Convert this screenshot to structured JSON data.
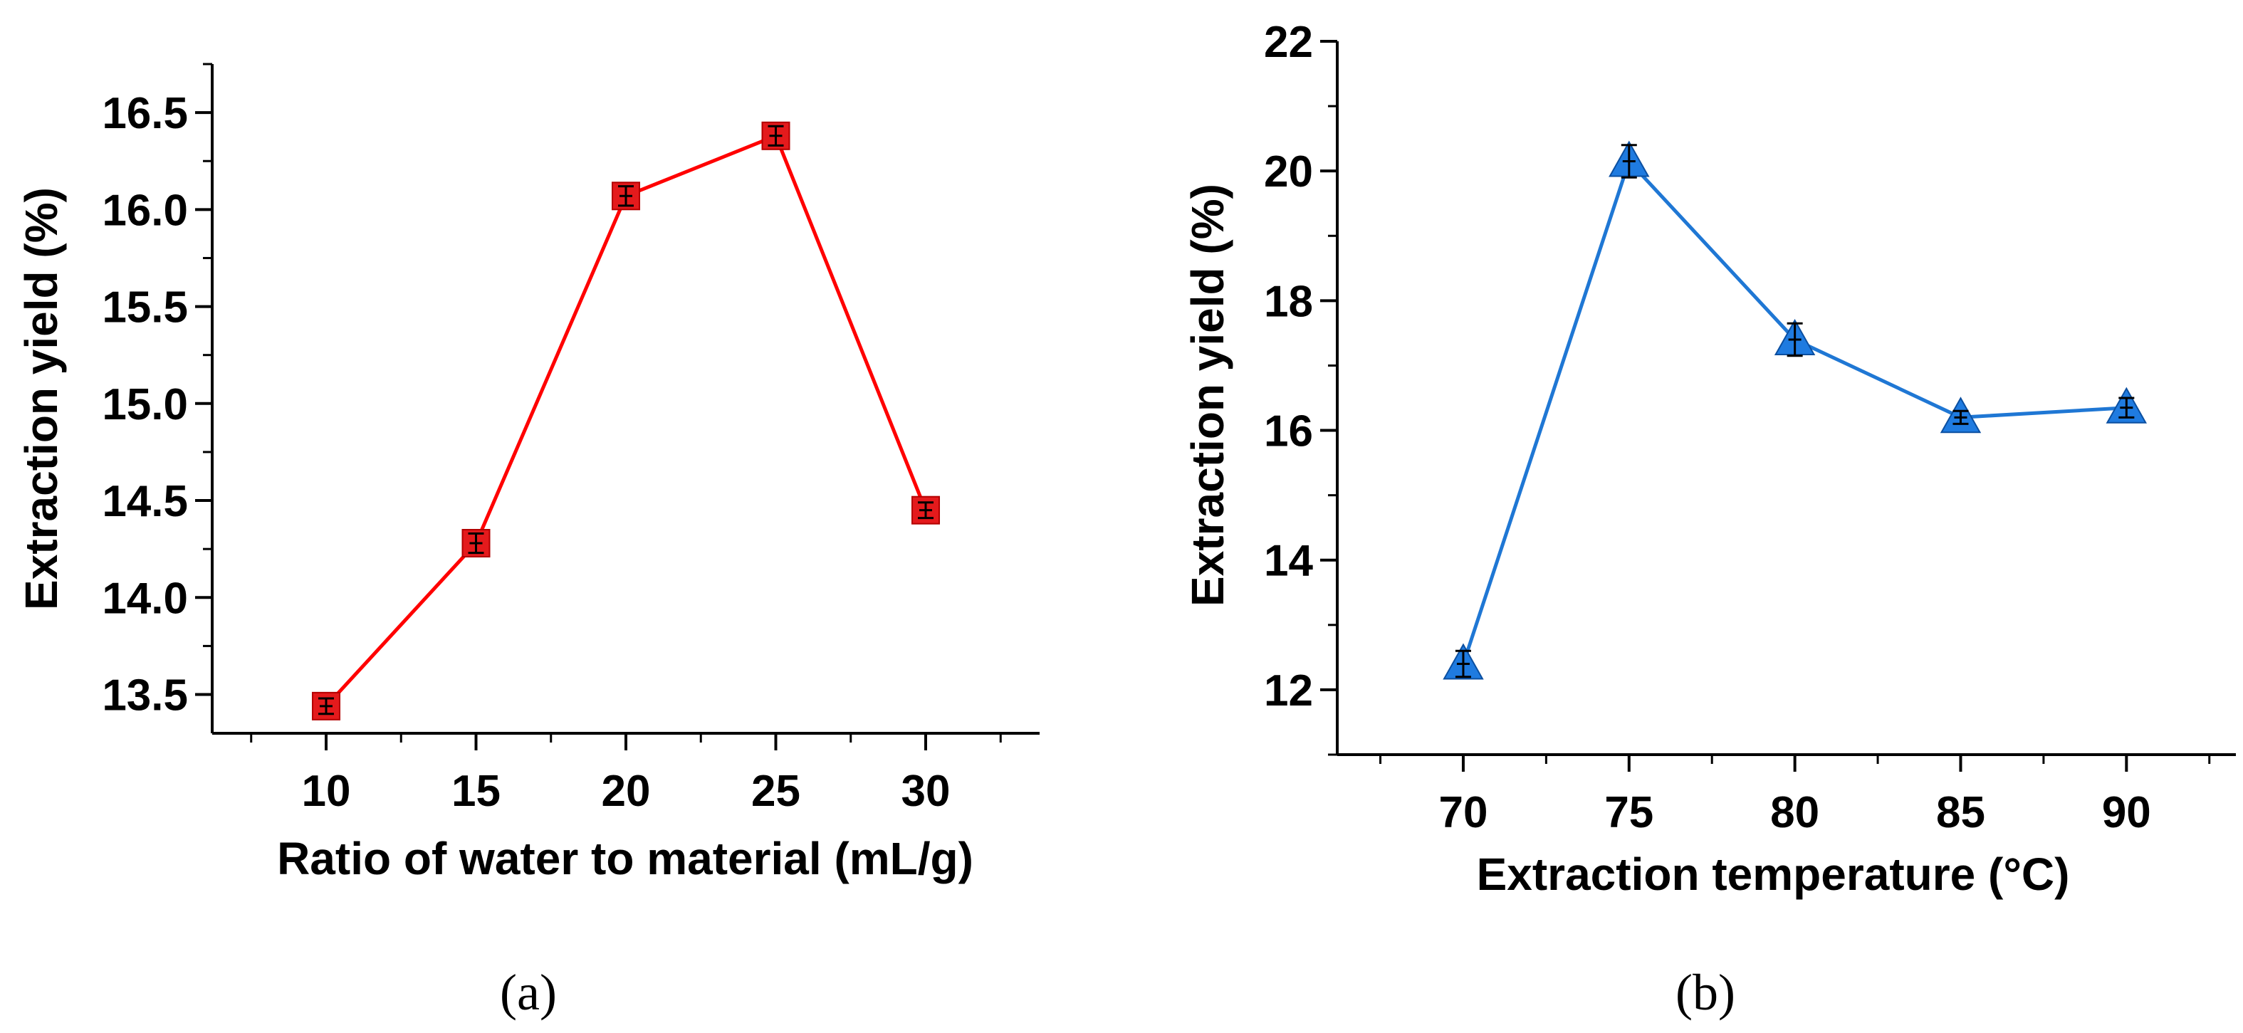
{
  "chart_data": [
    {
      "type": "line",
      "panel_label": "(a)",
      "xlabel": "Ratio of water to material (mL/g)",
      "ylabel": "Extraction yield (%)",
      "x": [
        10,
        15,
        20,
        25,
        30
      ],
      "values": [
        13.44,
        14.28,
        16.07,
        16.38,
        14.45
      ],
      "errors": [
        0.04,
        0.05,
        0.05,
        0.05,
        0.04
      ],
      "xlim": [
        6.2,
        33.8
      ],
      "ylim": [
        13.3,
        16.75
      ],
      "xticks": [
        10,
        15,
        20,
        25,
        30
      ],
      "xtick_labels": [
        "10",
        "15",
        "20",
        "25",
        "30"
      ],
      "yticks": [
        13.5,
        14.0,
        14.5,
        15.0,
        15.5,
        16.0,
        16.5
      ],
      "ytick_labels": [
        "13.5",
        "14.0",
        "14.5",
        "15.0",
        "15.5",
        "16.0",
        "16.5"
      ],
      "marker": "square",
      "color": "#ff0000",
      "marker_color": "#e41a1c",
      "grid": false
    },
    {
      "type": "line",
      "panel_label": "(b)",
      "xlabel": "Extraction temperature (°C)",
      "ylabel": "Extraction yield (%)",
      "x": [
        70,
        75,
        80,
        85,
        90
      ],
      "values": [
        12.4,
        20.15,
        17.4,
        16.2,
        16.35
      ],
      "errors": [
        0.2,
        0.25,
        0.25,
        0.1,
        0.15
      ],
      "xlim": [
        66.2,
        93.3
      ],
      "ylim": [
        11.0,
        22.0
      ],
      "xticks": [
        70,
        75,
        80,
        85,
        90
      ],
      "xtick_labels": [
        "70",
        "75",
        "80",
        "85",
        "90"
      ],
      "yticks": [
        12,
        14,
        16,
        18,
        20,
        22
      ],
      "ytick_labels": [
        "12",
        "14",
        "16",
        "18",
        "20",
        "22"
      ],
      "marker": "triangle",
      "color": "#1f77d4",
      "marker_color": "#1f7be0",
      "grid": false
    }
  ]
}
